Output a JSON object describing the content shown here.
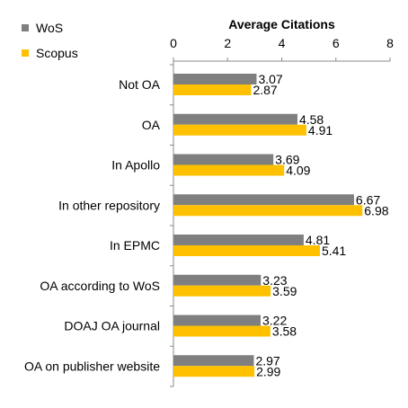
{
  "chart_data": {
    "type": "bar",
    "orientation": "horizontal",
    "title": "",
    "xlabel": "Average Citations",
    "ylabel": "",
    "xlim": [
      0,
      8
    ],
    "xticks": [
      0,
      2,
      4,
      6,
      8
    ],
    "xaxis_position": "top",
    "grid": false,
    "legend_position": "top-left",
    "categories": [
      "Not OA",
      "OA",
      "In Apollo",
      "In other repository",
      "In EPMC",
      "OA according to WoS",
      "DOAJ OA journal",
      "OA on publisher website"
    ],
    "series": [
      {
        "name": "WoS",
        "color": "#7f7f7f",
        "values": [
          3.07,
          4.58,
          3.69,
          6.67,
          4.81,
          3.23,
          3.22,
          2.97
        ]
      },
      {
        "name": "Scopus",
        "color": "#ffc000",
        "values": [
          2.87,
          4.91,
          4.09,
          6.98,
          5.41,
          3.59,
          3.58,
          2.99
        ]
      }
    ]
  }
}
